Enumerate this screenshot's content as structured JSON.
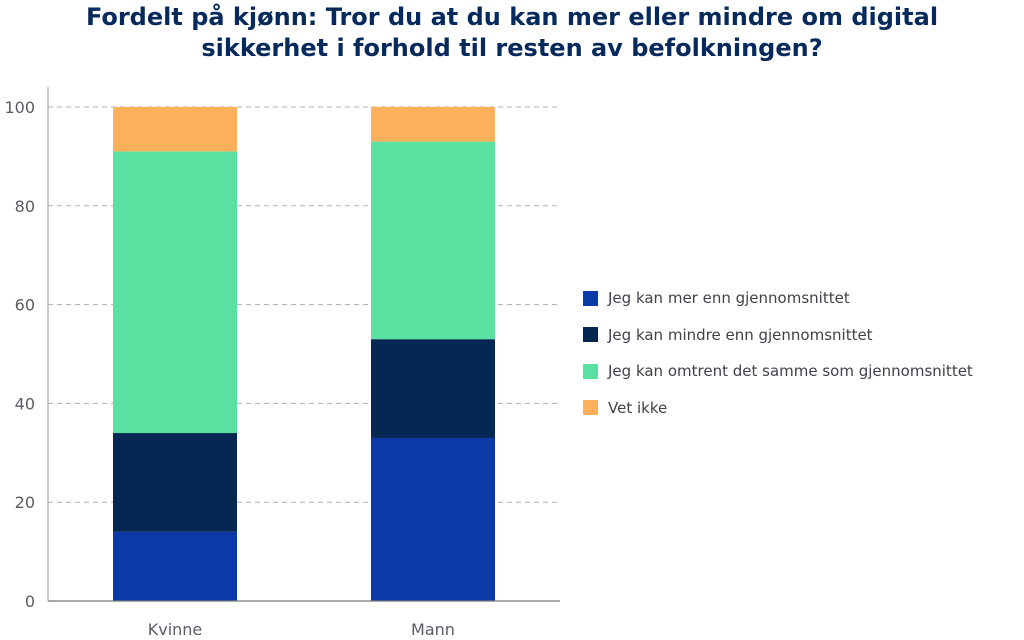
{
  "title": {
    "line1": "Fordelt på kjønn: Tror du at du kan mer eller mindre om digital",
    "line2": "sikkerhet i forhold til resten av befolkningen?"
  },
  "chart_data": {
    "type": "bar",
    "stacked": true,
    "categories": [
      "Kvinne",
      "Mann"
    ],
    "series": [
      {
        "name": "Jeg kan mer enn gjennomsnittet",
        "values": [
          14,
          33
        ],
        "color": "#0b3aa8"
      },
      {
        "name": "Jeg kan mindre enn gjennomsnittet",
        "values": [
          20,
          20
        ],
        "color": "#052752"
      },
      {
        "name": "Jeg kan omtrent det samme som gjennomsnittet",
        "values": [
          57,
          40
        ],
        "color": "#5ae0a0"
      },
      {
        "name": "Vet ikke",
        "values": [
          9,
          7
        ],
        "color": "#fdb05b"
      }
    ],
    "ylim": [
      0,
      100
    ],
    "yticks": [
      "0",
      "20",
      "40",
      "60",
      "80",
      "100"
    ],
    "grid": true,
    "legend_position": "right"
  }
}
